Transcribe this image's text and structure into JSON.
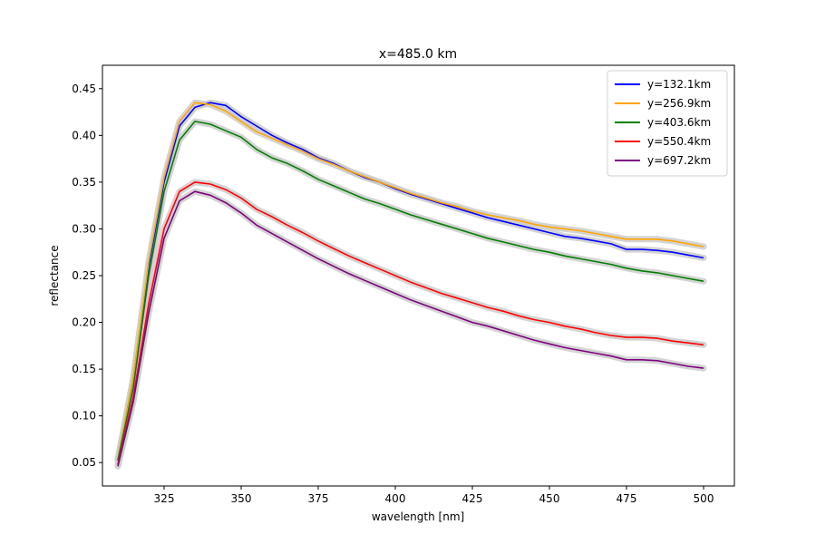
{
  "chart_data": {
    "type": "line",
    "title": "x=485.0 km",
    "xlabel": "wavelength [nm]",
    "ylabel": "reflectance",
    "xlim": [
      305,
      510
    ],
    "ylim": [
      0.025,
      0.475
    ],
    "xticks": [
      325,
      350,
      375,
      400,
      425,
      450,
      475,
      500
    ],
    "yticks": [
      0.05,
      0.1,
      0.15,
      0.2,
      0.25,
      0.3,
      0.35,
      0.4,
      0.45
    ],
    "grid": false,
    "legend_position": "top-right",
    "uncertainty_band_color": "#cccccc",
    "series": [
      {
        "name": "y=132.1km",
        "color": "#0000ff",
        "x": [
          310,
          315,
          320,
          325,
          330,
          335,
          340,
          345,
          350,
          355,
          360,
          365,
          370,
          375,
          380,
          385,
          390,
          395,
          400,
          405,
          410,
          415,
          420,
          425,
          430,
          435,
          440,
          445,
          450,
          455,
          460,
          465,
          470,
          475,
          480,
          485,
          490,
          495,
          500
        ],
        "y": [
          0.053,
          0.14,
          0.26,
          0.35,
          0.41,
          0.43,
          0.435,
          0.432,
          0.42,
          0.41,
          0.4,
          0.392,
          0.385,
          0.376,
          0.37,
          0.362,
          0.355,
          0.35,
          0.343,
          0.337,
          0.332,
          0.327,
          0.322,
          0.317,
          0.312,
          0.308,
          0.304,
          0.3,
          0.296,
          0.292,
          0.29,
          0.287,
          0.284,
          0.278,
          0.278,
          0.277,
          0.275,
          0.272,
          0.269
        ]
      },
      {
        "name": "y=256.9km",
        "color": "#ffa500",
        "x": [
          310,
          315,
          320,
          325,
          330,
          335,
          340,
          345,
          350,
          355,
          360,
          365,
          370,
          375,
          380,
          385,
          390,
          395,
          400,
          405,
          410,
          415,
          420,
          425,
          430,
          435,
          440,
          445,
          450,
          455,
          460,
          465,
          470,
          475,
          480,
          485,
          490,
          495,
          500
        ],
        "y": [
          0.053,
          0.14,
          0.265,
          0.355,
          0.415,
          0.435,
          0.433,
          0.426,
          0.415,
          0.404,
          0.397,
          0.39,
          0.383,
          0.375,
          0.369,
          0.362,
          0.356,
          0.35,
          0.344,
          0.338,
          0.333,
          0.328,
          0.324,
          0.319,
          0.315,
          0.312,
          0.309,
          0.305,
          0.302,
          0.3,
          0.298,
          0.295,
          0.292,
          0.289,
          0.289,
          0.289,
          0.287,
          0.284,
          0.281
        ]
      },
      {
        "name": "y=403.6km",
        "color": "#008000",
        "x": [
          310,
          315,
          320,
          325,
          330,
          335,
          340,
          345,
          350,
          355,
          360,
          365,
          370,
          375,
          380,
          385,
          390,
          395,
          400,
          405,
          410,
          415,
          420,
          425,
          430,
          435,
          440,
          445,
          450,
          455,
          460,
          465,
          470,
          475,
          480,
          485,
          490,
          495,
          500
        ],
        "y": [
          0.052,
          0.13,
          0.25,
          0.34,
          0.395,
          0.415,
          0.412,
          0.405,
          0.398,
          0.385,
          0.376,
          0.37,
          0.362,
          0.353,
          0.346,
          0.339,
          0.332,
          0.327,
          0.321,
          0.315,
          0.31,
          0.305,
          0.3,
          0.295,
          0.29,
          0.286,
          0.282,
          0.278,
          0.275,
          0.271,
          0.268,
          0.265,
          0.262,
          0.258,
          0.255,
          0.253,
          0.25,
          0.247,
          0.244
        ]
      },
      {
        "name": "y=550.4km",
        "color": "#ff0000",
        "x": [
          310,
          315,
          320,
          325,
          330,
          335,
          340,
          345,
          350,
          355,
          360,
          365,
          370,
          375,
          380,
          385,
          390,
          395,
          400,
          405,
          410,
          415,
          420,
          425,
          430,
          435,
          440,
          445,
          450,
          455,
          460,
          465,
          470,
          475,
          480,
          485,
          490,
          495,
          500
        ],
        "y": [
          0.048,
          0.12,
          0.22,
          0.3,
          0.34,
          0.35,
          0.348,
          0.342,
          0.333,
          0.321,
          0.313,
          0.304,
          0.296,
          0.287,
          0.279,
          0.271,
          0.264,
          0.257,
          0.25,
          0.243,
          0.237,
          0.231,
          0.226,
          0.221,
          0.216,
          0.212,
          0.207,
          0.203,
          0.2,
          0.196,
          0.193,
          0.189,
          0.186,
          0.184,
          0.184,
          0.183,
          0.18,
          0.178,
          0.176
        ]
      },
      {
        "name": "y=697.2km",
        "color": "#800080",
        "x": [
          310,
          315,
          320,
          325,
          330,
          335,
          340,
          345,
          350,
          355,
          360,
          365,
          370,
          375,
          380,
          385,
          390,
          395,
          400,
          405,
          410,
          415,
          420,
          425,
          430,
          435,
          440,
          445,
          450,
          455,
          460,
          465,
          470,
          475,
          480,
          485,
          490,
          495,
          500
        ],
        "y": [
          0.046,
          0.115,
          0.21,
          0.29,
          0.33,
          0.34,
          0.336,
          0.328,
          0.317,
          0.304,
          0.295,
          0.286,
          0.277,
          0.268,
          0.26,
          0.252,
          0.245,
          0.238,
          0.231,
          0.224,
          0.218,
          0.212,
          0.206,
          0.2,
          0.196,
          0.191,
          0.186,
          0.181,
          0.177,
          0.173,
          0.17,
          0.167,
          0.164,
          0.16,
          0.16,
          0.159,
          0.156,
          0.153,
          0.151
        ]
      }
    ]
  }
}
